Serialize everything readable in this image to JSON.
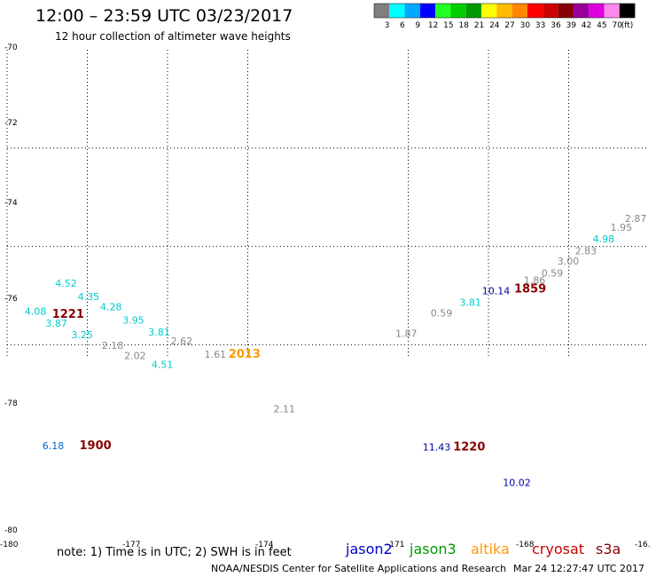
{
  "title": "12:00 – 23:59 UTC 03/23/2017",
  "subtitle": "12 hour collection of altimeter wave heights",
  "color_scale": {
    "colors": [
      "#7f7f7f",
      "#00ffff",
      "#00aaff",
      "#0000ff",
      "#22ff22",
      "#00cc00",
      "#009900",
      "#ffff00",
      "#ffbb00",
      "#ff8800",
      "#ff0000",
      "#cc0000",
      "#880000",
      "#990099",
      "#dd00dd",
      "#ff88ee",
      "#000000"
    ],
    "labels": [
      "3",
      "6",
      "9",
      "12",
      "15",
      "18",
      "21",
      "24",
      "27",
      "30",
      "33",
      "36",
      "39",
      "42",
      "45",
      "70",
      "(ft)"
    ]
  },
  "note": "note: 1) Time is in UTC; 2) SWH is in feet",
  "satellites": [
    {
      "name": "jason2",
      "color": "#0000cc"
    },
    {
      "name": "jason3",
      "color": "#009900"
    },
    {
      "name": "altika",
      "color": "#ff9900"
    },
    {
      "name": "cryosat",
      "color": "#cc0000"
    },
    {
      "name": "s3a",
      "color": "#880000"
    }
  ],
  "credit": "NOAA/NESDIS Center for Satellite Applications and Research",
  "timestamp": "Mar 24 12:27:47 UTC 2017",
  "chart_data": {
    "type": "scatter",
    "title": "12:00 – 23:59 UTC 03/23/2017",
    "subtitle": "12 hour collection of altimeter wave heights",
    "xlim": [
      -180,
      -160
    ],
    "ylim": [
      -80,
      -70
    ],
    "x_ticks": [
      "-180",
      "-177",
      "-174",
      "-171",
      "-168",
      "-16."
    ],
    "y_ticks": [
      "-70",
      "-72",
      "-74",
      "-76",
      "-78",
      "-80"
    ],
    "grid": true,
    "points": [
      {
        "text": "4.52",
        "lon": -178.5,
        "lat": -74.82,
        "color": "#00cccc"
      },
      {
        "text": "4.35",
        "lon": -177.8,
        "lat": -75.09,
        "color": "#00cccc"
      },
      {
        "text": "4.08",
        "lon": -179.45,
        "lat": -75.39,
        "color": "#00cccc"
      },
      {
        "text": "4.28",
        "lon": -177.1,
        "lat": -75.3,
        "color": "#00cccc"
      },
      {
        "text": "3.87",
        "lon": -178.8,
        "lat": -75.63,
        "color": "#00cccc"
      },
      {
        "text": "3.95",
        "lon": -176.4,
        "lat": -75.57,
        "color": "#00cccc"
      },
      {
        "text": "3.25",
        "lon": -178.0,
        "lat": -75.87,
        "color": "#00cccc"
      },
      {
        "text": "3.81",
        "lon": -175.6,
        "lat": -75.81,
        "color": "#00cccc"
      },
      {
        "text": "2.18",
        "lon": -177.05,
        "lat": -76.08,
        "color": "#888888"
      },
      {
        "text": "2.62",
        "lon": -174.9,
        "lat": -75.99,
        "color": "#888888"
      },
      {
        "text": "2.02",
        "lon": -176.35,
        "lat": -76.29,
        "color": "#888888"
      },
      {
        "text": "1.61",
        "lon": -173.85,
        "lat": -76.26,
        "color": "#888888"
      },
      {
        "text": "4.51",
        "lon": -175.5,
        "lat": -76.47,
        "color": "#00cccc"
      },
      {
        "text": "2.11",
        "lon": -171.7,
        "lat": -77.37,
        "color": "#888888"
      },
      {
        "text": "6.18",
        "lon": -178.9,
        "lat": -78.12,
        "color": "#0066cc"
      },
      {
        "text": "1.87",
        "lon": -167.9,
        "lat": -75.84,
        "color": "#888888"
      },
      {
        "text": "0.59",
        "lon": -166.8,
        "lat": -75.42,
        "color": "#888888"
      },
      {
        "text": "3.81",
        "lon": -165.9,
        "lat": -75.21,
        "color": "#00cccc"
      },
      {
        "text": "10.14",
        "lon": -165.2,
        "lat": -74.97,
        "color": "#0000aa"
      },
      {
        "text": "1.86",
        "lon": -163.9,
        "lat": -74.76,
        "color": "#888888"
      },
      {
        "text": "0.59",
        "lon": -163.35,
        "lat": -74.61,
        "color": "#888888"
      },
      {
        "text": "3.00",
        "lon": -162.85,
        "lat": -74.37,
        "color": "#888888"
      },
      {
        "text": "2.83",
        "lon": -162.3,
        "lat": -74.16,
        "color": "#888888"
      },
      {
        "text": "4.98",
        "lon": -161.75,
        "lat": -73.92,
        "color": "#00cccc"
      },
      {
        "text": "1.95",
        "lon": -161.2,
        "lat": -73.68,
        "color": "#888888"
      },
      {
        "text": "2.87",
        "lon": -160.75,
        "lat": -73.5,
        "color": "#888888"
      },
      {
        "text": "11.43",
        "lon": -167.05,
        "lat": -78.15,
        "color": "#0000aa"
      },
      {
        "text": "10.02",
        "lon": -164.55,
        "lat": -78.87,
        "color": "#0000aa"
      }
    ],
    "times": [
      {
        "text": "1221",
        "lon": -178.6,
        "lat": -75.45,
        "color": "#880000"
      },
      {
        "text": "2013",
        "lon": -173.1,
        "lat": -76.26,
        "color": "#ff9900"
      },
      {
        "text": "1900",
        "lon": -177.75,
        "lat": -78.12,
        "color": "#880000"
      },
      {
        "text": "1859",
        "lon": -164.2,
        "lat": -74.94,
        "color": "#880000"
      },
      {
        "text": "1220",
        "lon": -166.1,
        "lat": -78.15,
        "color": "#880000"
      }
    ]
  }
}
